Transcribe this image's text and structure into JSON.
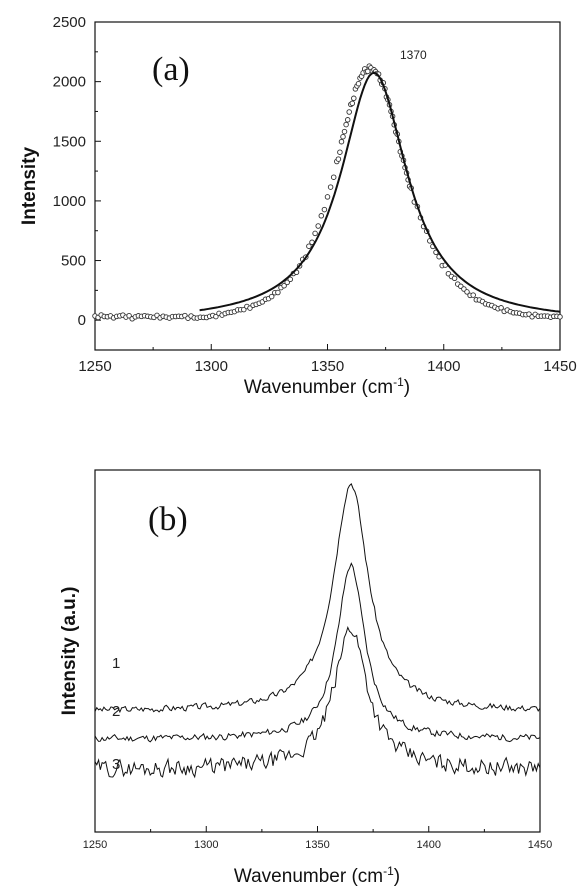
{
  "chart_data": [
    {
      "type": "scatter",
      "panel_label": "(a)",
      "xlabel_main": "Wavenumber (cm",
      "xlabel_sup": "-1",
      "xlabel_end": ")",
      "ylabel": "Intensity",
      "xlim": [
        1250,
        1450
      ],
      "ylim": [
        -250,
        2500
      ],
      "xticks": [
        "1250",
        "1300",
        "1350",
        "1400",
        "1450"
      ],
      "yticks": [
        "0",
        "500",
        "1000",
        "1500",
        "2000",
        "2500"
      ],
      "annotation": "1370",
      "peak_center": 1370,
      "series": [
        {
          "kind": "markers",
          "x": [
            1250,
            1254,
            1258,
            1262,
            1266,
            1270,
            1274,
            1278,
            1282,
            1286,
            1290,
            1294,
            1298,
            1302,
            1306,
            1310,
            1314,
            1318,
            1322,
            1326,
            1330,
            1334,
            1338,
            1342,
            1346,
            1350,
            1354,
            1356,
            1358,
            1360,
            1362,
            1364,
            1366,
            1368,
            1370,
            1372,
            1374,
            1376,
            1378,
            1380,
            1382,
            1384,
            1386,
            1390,
            1394,
            1398,
            1402,
            1406,
            1410,
            1414,
            1418,
            1422,
            1426,
            1430,
            1434,
            1438,
            1442,
            1446,
            1450
          ],
          "y": [
            30,
            35,
            25,
            40,
            20,
            38,
            28,
            30,
            22,
            35,
            28,
            20,
            25,
            40,
            55,
            75,
            95,
            120,
            155,
            200,
            265,
            345,
            450,
            600,
            790,
            1020,
            1310,
            1480,
            1640,
            1790,
            1920,
            2030,
            2090,
            2110,
            2100,
            2050,
            1970,
            1850,
            1700,
            1540,
            1380,
            1230,
            1090,
            860,
            670,
            520,
            400,
            310,
            235,
            180,
            140,
            110,
            85,
            65,
            50,
            40,
            35,
            30,
            28
          ]
        },
        {
          "kind": "fit-line",
          "x_start": 1295,
          "x_end": 1450,
          "amplitude": 2100,
          "hwhm": 17.5,
          "baseline": -25
        }
      ]
    },
    {
      "type": "line",
      "panel_label": "(b)",
      "xlabel_main": "Wavenumber (cm",
      "xlabel_sup": "-1",
      "xlabel_end": ")",
      "ylabel": "Intensity (a.u.)",
      "xlim": [
        1250,
        1450
      ],
      "xticks": [
        "1250",
        "1300",
        "1350",
        "1400",
        "1450"
      ],
      "y_axis_values_shown": false,
      "peak_center": 1365,
      "series": [
        {
          "label": "1",
          "baseline": 1.0,
          "peak": 5.3,
          "hwhm": 9.5,
          "noise": 0.1,
          "seed": 3
        },
        {
          "label": "2",
          "baseline": 0.35,
          "peak": 4.05,
          "hwhm": 7.5,
          "noise": 0.11,
          "seed": 11
        },
        {
          "label": "3",
          "baseline": -0.35,
          "peak": 3.3,
          "hwhm": 9.0,
          "noise": 0.26,
          "seed": 29
        }
      ],
      "ylim_internal": [
        -1.8,
        6.6
      ]
    }
  ]
}
